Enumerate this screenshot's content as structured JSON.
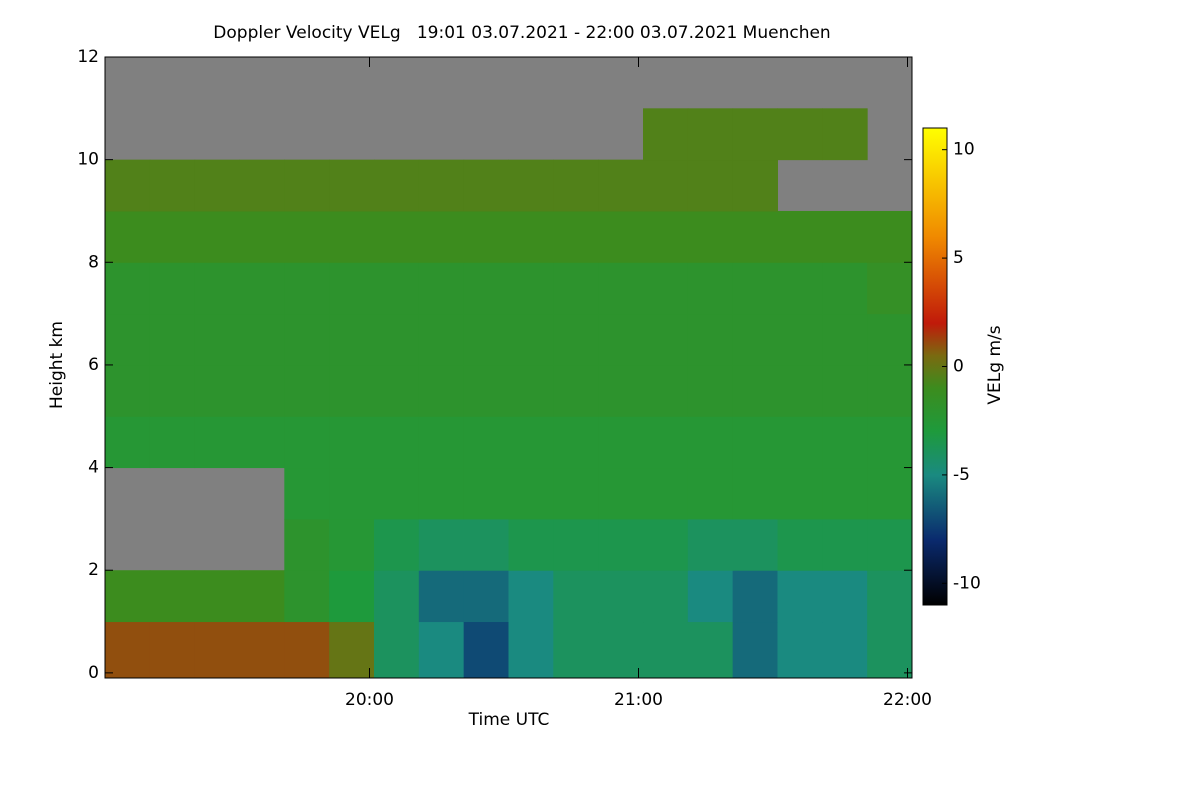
{
  "chart_data": {
    "type": "heatmap",
    "title": "Doppler Velocity VELg   19:01 03.07.2021 - 22:00 03.07.2021 Muenchen",
    "x_label": "Time UTC",
    "y_label": "Height km",
    "colorbar_label": "VELg m/s",
    "xlim": [
      19.0167,
      22.0167
    ],
    "xticks": [
      {
        "value": 20,
        "label": "20:00"
      },
      {
        "value": 21,
        "label": "21:00"
      },
      {
        "value": 22,
        "label": "22:00"
      }
    ],
    "ylim": [
      -0.1,
      12
    ],
    "yticks": [
      0,
      2,
      4,
      6,
      8,
      10,
      12
    ],
    "clim": [
      -11,
      11
    ],
    "cticks": [
      -10,
      -5,
      0,
      5,
      10
    ],
    "missing_color": "#808080",
    "colorscale": [
      [
        -11,
        "#000000"
      ],
      [
        -8,
        "#0a2a6e"
      ],
      [
        -5,
        "#1a8a80"
      ],
      [
        -3,
        "#1e9a3c"
      ],
      [
        -1,
        "#3c8c1e"
      ],
      [
        0.5,
        "#7a6a10"
      ],
      [
        2,
        "#c01a0a"
      ],
      [
        6,
        "#f08a00"
      ],
      [
        11,
        "#ffff00"
      ]
    ],
    "xbins": [
      19.0167,
      19.1833,
      19.35,
      19.5167,
      19.6833,
      19.85,
      20.0167,
      20.1833,
      20.35,
      20.5167,
      20.6833,
      20.85,
      21.0167,
      21.1833,
      21.35,
      21.5167,
      21.6833,
      21.85,
      22.0167
    ],
    "ybins": [
      0,
      1,
      2,
      3,
      4,
      5,
      6,
      7,
      8,
      9,
      10,
      11,
      12
    ],
    "z": [
      [
        1,
        1,
        1,
        1,
        1,
        0,
        -4,
        -5,
        -7,
        -5,
        -4,
        -4,
        -4,
        -4,
        -6,
        -5,
        -5,
        -4
      ],
      [
        -1,
        -1,
        -1,
        -1,
        -2,
        -3,
        -4,
        -6,
        -6,
        -5,
        -4,
        -4,
        -4,
        -5,
        -6,
        -5,
        -5,
        -4
      ],
      [
        null,
        null,
        null,
        null,
        -2,
        -2.5,
        -3.5,
        -4,
        -4,
        -3.5,
        -3.5,
        -3.5,
        -3.5,
        -4,
        -4,
        -3.5,
        -3.5,
        -3.5
      ],
      [
        null,
        null,
        null,
        null,
        -2.5,
        -2.5,
        -2.5,
        -2.5,
        -2.5,
        -2.5,
        -2.5,
        -2.5,
        -2.5,
        -2.5,
        -2.5,
        -2.5,
        -2.5,
        -2.5
      ],
      [
        -2.5,
        -2.5,
        -2.5,
        -2.5,
        -2.5,
        -2.5,
        -2.5,
        -2.5,
        -2.5,
        -2.5,
        -2.5,
        -2.5,
        -2.5,
        -2.5,
        -2.5,
        -2.5,
        -2.5,
        -2.5
      ],
      [
        -2,
        -2,
        -2,
        -2,
        -2,
        -2,
        -2,
        -2,
        -2,
        -2,
        -2,
        -2,
        -2,
        -2,
        -2,
        -2,
        -2,
        -2
      ],
      [
        -2,
        -2,
        -2,
        -2,
        -2,
        -2,
        -2,
        -2,
        -2,
        -2,
        -2,
        -2,
        -2,
        -2,
        -2,
        -2,
        -2,
        -2
      ],
      [
        -2,
        -2,
        -2,
        -2,
        -2,
        -2,
        -2,
        -2,
        -2,
        -2,
        -2,
        -2,
        -2,
        -2,
        -2,
        -2,
        -2,
        -1.5
      ],
      [
        -1,
        -1,
        -1,
        -1,
        -1,
        -1,
        -1,
        -1,
        -1,
        -1,
        -1,
        -1,
        -1,
        -1,
        -1,
        -1,
        -1,
        -1
      ],
      [
        -0.5,
        -0.5,
        -0.5,
        -0.5,
        -0.5,
        -0.5,
        -0.5,
        -0.5,
        -0.5,
        -0.5,
        -0.5,
        -0.5,
        -0.5,
        -0.5,
        -0.5,
        null,
        null,
        null
      ],
      [
        null,
        null,
        null,
        null,
        null,
        null,
        null,
        null,
        null,
        null,
        null,
        null,
        -0.5,
        -0.5,
        -0.5,
        -0.5,
        -0.5,
        null
      ],
      [
        null,
        null,
        null,
        null,
        null,
        null,
        null,
        null,
        null,
        null,
        null,
        null,
        null,
        null,
        null,
        null,
        null,
        null
      ]
    ]
  }
}
